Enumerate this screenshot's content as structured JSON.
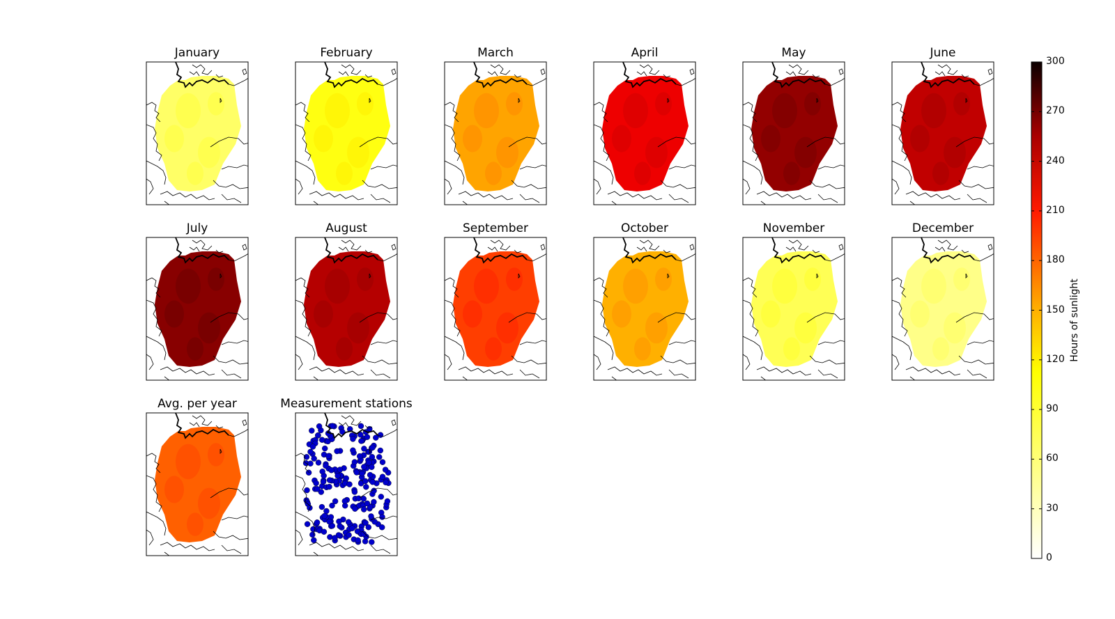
{
  "panels": [
    {
      "title": "January",
      "level": 45,
      "kind": "map"
    },
    {
      "title": "February",
      "level": 70,
      "kind": "map"
    },
    {
      "title": "March",
      "level": 115,
      "kind": "map"
    },
    {
      "title": "April",
      "level": 195,
      "kind": "map"
    },
    {
      "title": "May",
      "level": 235,
      "kind": "map"
    },
    {
      "title": "June",
      "level": 215,
      "kind": "map"
    },
    {
      "title": "July",
      "level": 240,
      "kind": "map"
    },
    {
      "title": "August",
      "level": 220,
      "kind": "map"
    },
    {
      "title": "September",
      "level": 160,
      "kind": "map"
    },
    {
      "title": "October",
      "level": 110,
      "kind": "map"
    },
    {
      "title": "November",
      "level": 50,
      "kind": "map"
    },
    {
      "title": "December",
      "level": 35,
      "kind": "map"
    },
    {
      "title": "Avg. per year",
      "level": 145,
      "kind": "map"
    },
    {
      "title": "Measurement stations",
      "level": null,
      "kind": "stations"
    }
  ],
  "colorbar": {
    "label": "Hours of sunlight",
    "min": 0,
    "max": 300,
    "ticks": [
      "0",
      "30",
      "60",
      "90",
      "120",
      "150",
      "180",
      "210",
      "240",
      "270",
      "300"
    ],
    "colormap": "hot_r"
  },
  "colors": {
    "station_dot": "#0000cc",
    "border": "#000000"
  }
}
